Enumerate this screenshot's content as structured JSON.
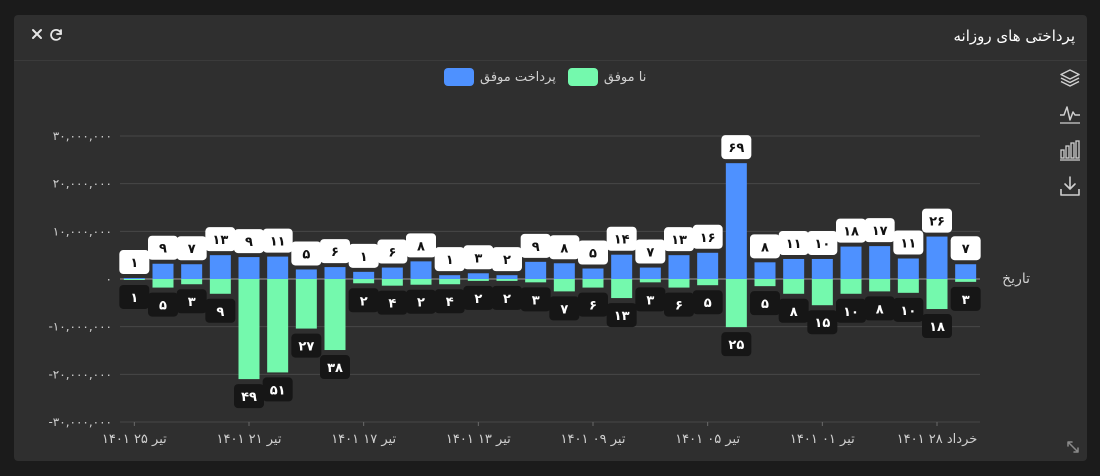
{
  "header": {
    "title": "پرداختی های روزانه",
    "close_icon": "close-icon",
    "refresh_icon": "refresh-icon"
  },
  "toolbox": {
    "icons": [
      "layers-icon",
      "line-chart-icon",
      "bar-chart-icon",
      "download-icon"
    ]
  },
  "colors": {
    "success": "#4e91ff",
    "failed": "#74f9ad",
    "background": "#2f2f2f",
    "grid": "#4a4a4a",
    "axis_text": "#cfcfcf"
  },
  "chart_data": {
    "type": "bar",
    "stacked_diverging": true,
    "xlabel": "تاریخ",
    "ylabel": "",
    "ylim": [
      -30000000,
      30000000
    ],
    "y_ticks": [
      "۳۰,۰۰۰,۰۰۰",
      "۲۰,۰۰۰,۰۰۰",
      "۱۰,۰۰۰,۰۰۰",
      "۰",
      "-۱۰,۰۰۰,۰۰۰",
      "-۲۰,۰۰۰,۰۰۰",
      "-۳۰,۰۰۰,۰۰۰"
    ],
    "y_tick_values": [
      30000000,
      20000000,
      10000000,
      0,
      -10000000,
      -20000000,
      -30000000
    ],
    "x_tick_labels": [
      "تیر ۲۵ ۱۴۰۱",
      "تیر ۲۱ ۱۴۰۱",
      "تیر ۱۷ ۱۴۰۱",
      "تیر ۱۳ ۱۴۰۱",
      "تیر ۰۹ ۱۴۰۱",
      "تیر ۰۵ ۱۴۰۱",
      "تیر ۰۱ ۱۴۰۱",
      "خرداد ۲۸ ۱۴۰۱"
    ],
    "legend_position": "top-center",
    "series": [
      {
        "name": "پرداخت موفق",
        "color": "#4e91ff",
        "values": [
          200000,
          3200000,
          3100000,
          5000000,
          4600000,
          4700000,
          2000000,
          2500000,
          1500000,
          2400000,
          3700000,
          800000,
          1200000,
          800000,
          3600000,
          3300000,
          2200000,
          5100000,
          2400000,
          5000000,
          5500000,
          24300000,
          3500000,
          4200000,
          4200000,
          6800000,
          6900000,
          4300000,
          8900000,
          3100000
        ],
        "labels": [
          "۱",
          "۹",
          "۷",
          "۱۳",
          "۹",
          "۱۱",
          "۵",
          "۶",
          "۱",
          "۶",
          "۸",
          "۱",
          "۳",
          "۲",
          "۹",
          "۸",
          "۵",
          "۱۴",
          "۷",
          "۱۳",
          "۱۶",
          "۶۹",
          "۸",
          "۱۱",
          "۱۰",
          "۱۸",
          "۱۷",
          "۱۱",
          "۲۶",
          "۷"
        ]
      },
      {
        "name": "نا موفق",
        "color": "#74f9ad",
        "values": [
          -200000,
          -1800000,
          -1100000,
          -3100000,
          -21000000,
          -19600000,
          -10400000,
          -14900000,
          -900000,
          -1400000,
          -1200000,
          -1100000,
          -400000,
          -400000,
          -700000,
          -2600000,
          -1800000,
          -4000000,
          -700000,
          -1800000,
          -1300000,
          -10100000,
          -1500000,
          -3100000,
          -5500000,
          -3100000,
          -2600000,
          -2900000,
          -6300000,
          -600000
        ],
        "labels": [
          "۱",
          "۵",
          "۳",
          "۹",
          "۴۹",
          "۵۱",
          "۲۷",
          "۳۸",
          "۲",
          "۴",
          "۲",
          "۴",
          "۲",
          "۲",
          "۳",
          "۷",
          "۶",
          "۱۳",
          "۳",
          "۶",
          "۵",
          "۲۵",
          "۵",
          "۸",
          "۱۵",
          "۱۰",
          "۸",
          "۱۰",
          "۱۸",
          "۳"
        ]
      }
    ]
  }
}
